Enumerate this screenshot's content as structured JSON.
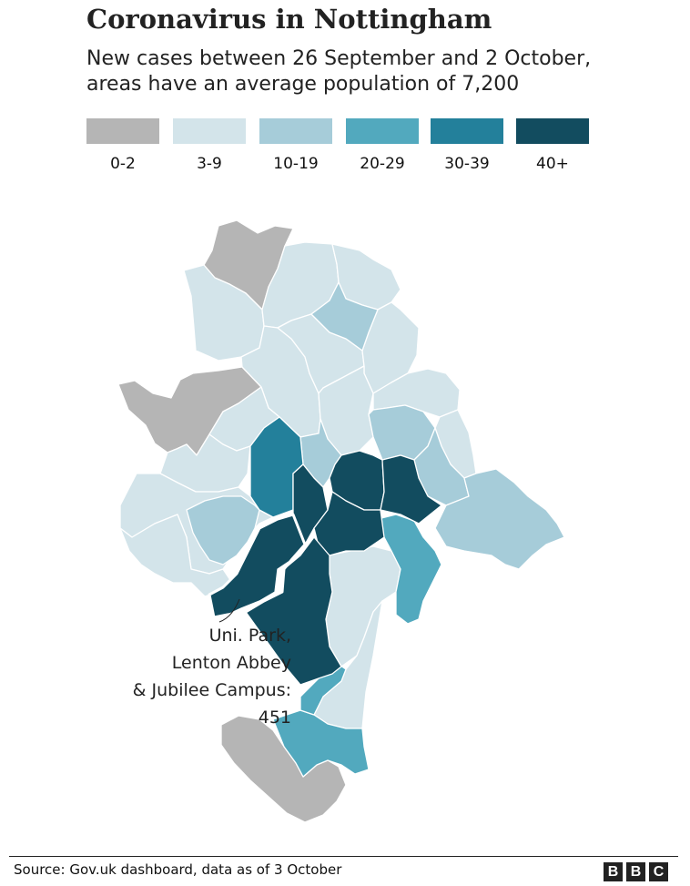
{
  "title": "Coronavirus in Nottingham",
  "subtitle_line1": "New cases between 26 September and 2 October,",
  "subtitle_line2": "areas have an average population of 7,200",
  "legend": [
    {
      "label": "0-2",
      "color": "#b5b5b5"
    },
    {
      "label": "3-9",
      "color": "#d3e4ea"
    },
    {
      "label": "10-19",
      "color": "#a6ccd9"
    },
    {
      "label": "20-29",
      "color": "#52a9be"
    },
    {
      "label": "30-39",
      "color": "#23809b"
    },
    {
      "label": "40+",
      "color": "#124c5f"
    }
  ],
  "annotation": {
    "line1": "Uni. Park,",
    "line2": "Lenton Abbey",
    "line3": "& Jubilee Campus:",
    "line4": "451"
  },
  "source": "Source: Gov.uk dashboard, data as of 3 October",
  "brand": [
    "B",
    "B",
    "C"
  ]
}
